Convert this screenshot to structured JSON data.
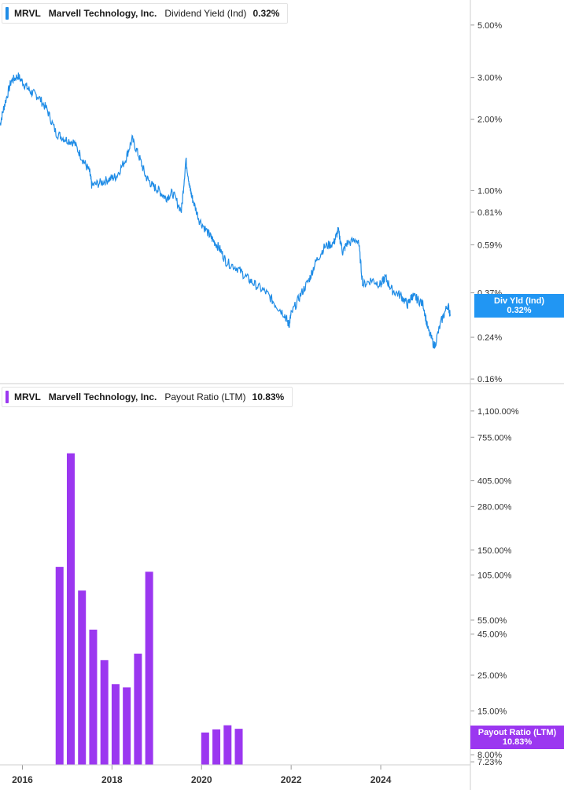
{
  "colors": {
    "yield_line": "#1f8ce6",
    "yield_tag_bg": "#2196f3",
    "payout_bar": "#9b37f0",
    "payout_tag_bg": "#9b37f0",
    "grid": "#d9d9d9",
    "text": "#333333"
  },
  "top_legend": {
    "ticker": "MRVL",
    "company": "Marvell Technology, Inc.",
    "metric": "Dividend Yield (Ind)",
    "value": "0.32%"
  },
  "bottom_legend": {
    "ticker": "MRVL",
    "company": "Marvell Technology, Inc.",
    "metric": "Payout Ratio (LTM)",
    "value": "10.83%"
  },
  "yield_tag": {
    "label": "Div Yld (Ind)",
    "value": "0.32%"
  },
  "payout_tag": {
    "label": "Payout Ratio (LTM)",
    "value": "10.83%"
  },
  "chart_data": [
    {
      "type": "line",
      "title": "",
      "yscale": "log",
      "ylim": [
        0.145,
        6.0
      ],
      "xlim": [
        2015.5,
        2025.65
      ],
      "y_ticks": [
        {
          "value": 5.0,
          "label": "5.00%"
        },
        {
          "value": 3.0,
          "label": "3.00%"
        },
        {
          "value": 2.0,
          "label": "2.00%"
        },
        {
          "value": 1.0,
          "label": "1.00%"
        },
        {
          "value": 0.81,
          "label": "0.81%"
        },
        {
          "value": 0.59,
          "label": "0.59%"
        },
        {
          "value": 0.37,
          "label": "0.37%"
        },
        {
          "value": 0.24,
          "label": "0.24%"
        },
        {
          "value": 0.16,
          "label": "0.16%"
        }
      ],
      "series": [
        {
          "name": "Dividend Yield (Ind)",
          "x": [
            2015.5,
            2015.6,
            2015.75,
            2015.9,
            2016.05,
            2016.2,
            2016.35,
            2016.55,
            2016.75,
            2016.95,
            2017.15,
            2017.35,
            2017.5,
            2017.55,
            2017.75,
            2017.95,
            2018.1,
            2018.3,
            2018.45,
            2018.6,
            2018.75,
            2018.9,
            2019.05,
            2019.2,
            2019.35,
            2019.55,
            2019.65,
            2019.75,
            2019.8,
            2019.95,
            2020.15,
            2020.25,
            2020.4,
            2020.55,
            2020.8,
            2021.0,
            2021.2,
            2021.45,
            2021.65,
            2021.85,
            2021.95,
            2022.0,
            2022.2,
            2022.4,
            2022.55,
            2022.75,
            2022.95,
            2023.05,
            2023.15,
            2023.25,
            2023.5,
            2023.6,
            2023.8,
            2024.0,
            2024.1,
            2024.25,
            2024.45,
            2024.6,
            2024.7,
            2024.8,
            2024.95,
            2025.05,
            2025.2,
            2025.35,
            2025.5,
            2025.55
          ],
          "y": [
            1.9,
            2.3,
            2.9,
            3.05,
            2.8,
            2.6,
            2.5,
            2.2,
            1.75,
            1.65,
            1.6,
            1.35,
            1.2,
            1.05,
            1.08,
            1.12,
            1.15,
            1.35,
            1.65,
            1.4,
            1.15,
            1.05,
            1.0,
            0.93,
            0.98,
            0.82,
            1.35,
            1.0,
            0.92,
            0.75,
            0.66,
            0.62,
            0.57,
            0.5,
            0.47,
            0.43,
            0.4,
            0.37,
            0.33,
            0.3,
            0.27,
            0.3,
            0.36,
            0.42,
            0.5,
            0.58,
            0.6,
            0.68,
            0.55,
            0.6,
            0.62,
            0.4,
            0.42,
            0.4,
            0.43,
            0.38,
            0.36,
            0.33,
            0.36,
            0.35,
            0.33,
            0.26,
            0.22,
            0.28,
            0.33,
            0.3
          ],
          "color": "#1f8ce6"
        }
      ]
    },
    {
      "type": "bar",
      "title": "",
      "yscale": "log",
      "ylim": [
        7.0,
        1300
      ],
      "xlim": [
        2015.5,
        2025.65
      ],
      "x_ticks": [
        2016,
        2018,
        2020,
        2022,
        2024
      ],
      "x_tick_labels": [
        "2016",
        "2018",
        "2020",
        "2022",
        "2024"
      ],
      "y_ticks": [
        {
          "value": 1100,
          "label": "1,100.00%"
        },
        {
          "value": 755,
          "label": "755.00%"
        },
        {
          "value": 405,
          "label": "405.00%"
        },
        {
          "value": 280,
          "label": "280.00%"
        },
        {
          "value": 150,
          "label": "150.00%"
        },
        {
          "value": 105,
          "label": "105.00%"
        },
        {
          "value": 55,
          "label": "55.00%"
        },
        {
          "value": 45,
          "label": "45.00%"
        },
        {
          "value": 25,
          "label": "25.00%"
        },
        {
          "value": 15,
          "label": "15.00%"
        },
        {
          "value": 8,
          "label": "8.00%"
        },
        {
          "value": 7.23,
          "label": "7.23%"
        }
      ],
      "series": [
        {
          "name": "Payout Ratio (LTM)",
          "x": [
            2016.83,
            2017.08,
            2017.33,
            2017.58,
            2017.83,
            2018.08,
            2018.33,
            2018.58,
            2018.83,
            2020.08,
            2020.33,
            2020.58,
            2020.83
          ],
          "y": [
            118,
            600,
            84,
            48,
            31,
            22,
            21,
            34,
            110,
            11.0,
            11.5,
            12.2,
            11.6
          ],
          "color": "#9b37f0"
        }
      ]
    }
  ]
}
